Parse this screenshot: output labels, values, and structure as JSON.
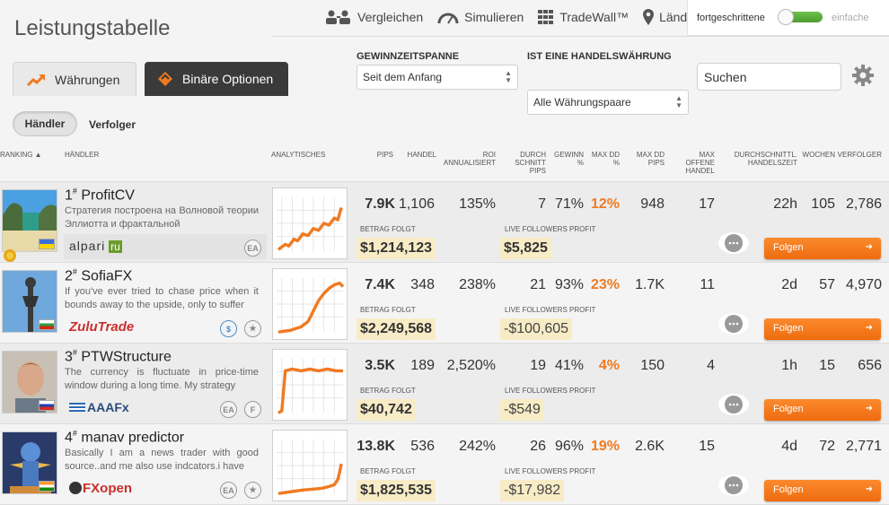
{
  "page": {
    "title": "Leistungstabelle"
  },
  "topnav": {
    "compare": "Vergleichen",
    "simulate": "Simulieren",
    "tradewall": "TradeWall™",
    "countries": "Länder",
    "mode_advanced": "fortgeschrittene",
    "mode_simple": "einfache"
  },
  "tabs": {
    "currencies": "Währungen",
    "binary": "Binäre Optionen"
  },
  "filters": {
    "period_label": "GEWINNZEITSPANNE",
    "period_value": "Seit dem Anfang",
    "currency_label": "IST EINE HANDELSWÄHRUNG",
    "currency_value": "Alle Währungspaare",
    "search_placeholder": "Suchen"
  },
  "subtabs": {
    "traders": "Händler",
    "followers": "Verfolger"
  },
  "columns": {
    "ranking": "RANKING ▲",
    "trader": "HÄNDLER",
    "analytics": "ANALYTISCHES",
    "pips": "PIPS",
    "trades": "HANDEL",
    "roi": "ROI ANNUALISIERT",
    "avg_pips": "DURCH SCHNITT PIPS",
    "win": "GEWINN %",
    "max_dd": "MAX DD %",
    "max_dd_pips": "MAX DD PIPS",
    "max_open": "MAX OFFENE HANDEL",
    "avg_time": "DURCHSCHNITTL. HANDELSZEIT",
    "weeks": "WOCHEN",
    "followers": "VERFOLGER"
  },
  "labels": {
    "amount_following": "BETRAG FOLGT",
    "live_profit": "LIVE FOLLOWERS PROFIT",
    "follow": "Folgen"
  },
  "traders": [
    {
      "rank": "1",
      "rank_suffix": "#",
      "name": "ProfitCV",
      "desc": "Стратегия построена на Волновой теории Эллиотта и фрактальной",
      "broker": "alpari",
      "pips": "7.9K",
      "trades": "1,106",
      "roi": "135%",
      "avg_pips": "7",
      "win": "71%",
      "max_dd": "12%",
      "max_dd_pips": "948",
      "max_open": "17",
      "avg_time": "22h",
      "weeks": "105",
      "followers": "2,786",
      "amount": "$1,214,123",
      "live_profit": "$5,825",
      "badges": [
        "EA"
      ]
    },
    {
      "rank": "2",
      "rank_suffix": "#",
      "name": "SofiaFX",
      "desc": "If you've ever tried to chase price when it bounds away to the upside, only to suffer",
      "broker": "ZuluTrade",
      "pips": "7.4K",
      "trades": "348",
      "roi": "238%",
      "avg_pips": "21",
      "win": "93%",
      "max_dd": "23%",
      "max_dd_pips": "1.7K",
      "max_open": "11",
      "avg_time": "2d",
      "weeks": "57",
      "followers": "4,970",
      "amount": "$2,249,568",
      "live_profit": "-$100,605",
      "badges": [
        "$",
        "★"
      ]
    },
    {
      "rank": "3",
      "rank_suffix": "#",
      "name": "PTWStructure",
      "desc": "The currency is fluctuate in price-time window during a long time. My strategy",
      "broker": "AAAFx",
      "pips": "3.5K",
      "trades": "189",
      "roi": "2,520%",
      "avg_pips": "19",
      "win": "41%",
      "max_dd": "4%",
      "max_dd_pips": "150",
      "max_open": "4",
      "avg_time": "1h",
      "weeks": "15",
      "followers": "656",
      "amount": "$40,742",
      "live_profit": "-$549",
      "badges": [
        "EA",
        "F"
      ]
    },
    {
      "rank": "4",
      "rank_suffix": "#",
      "name": "manav predictor",
      "desc": "Basically I am a news trader with good source..and me also use indcators.i have",
      "broker": "FXopen",
      "pips": "13.8K",
      "trades": "536",
      "roi": "242%",
      "avg_pips": "26",
      "win": "96%",
      "max_dd": "19%",
      "max_dd_pips": "2.6K",
      "max_open": "15",
      "avg_time": "4d",
      "weeks": "72",
      "followers": "2,771",
      "amount": "$1,825,535",
      "live_profit": "-$17,982",
      "badges": [
        "EA",
        "★"
      ]
    }
  ]
}
